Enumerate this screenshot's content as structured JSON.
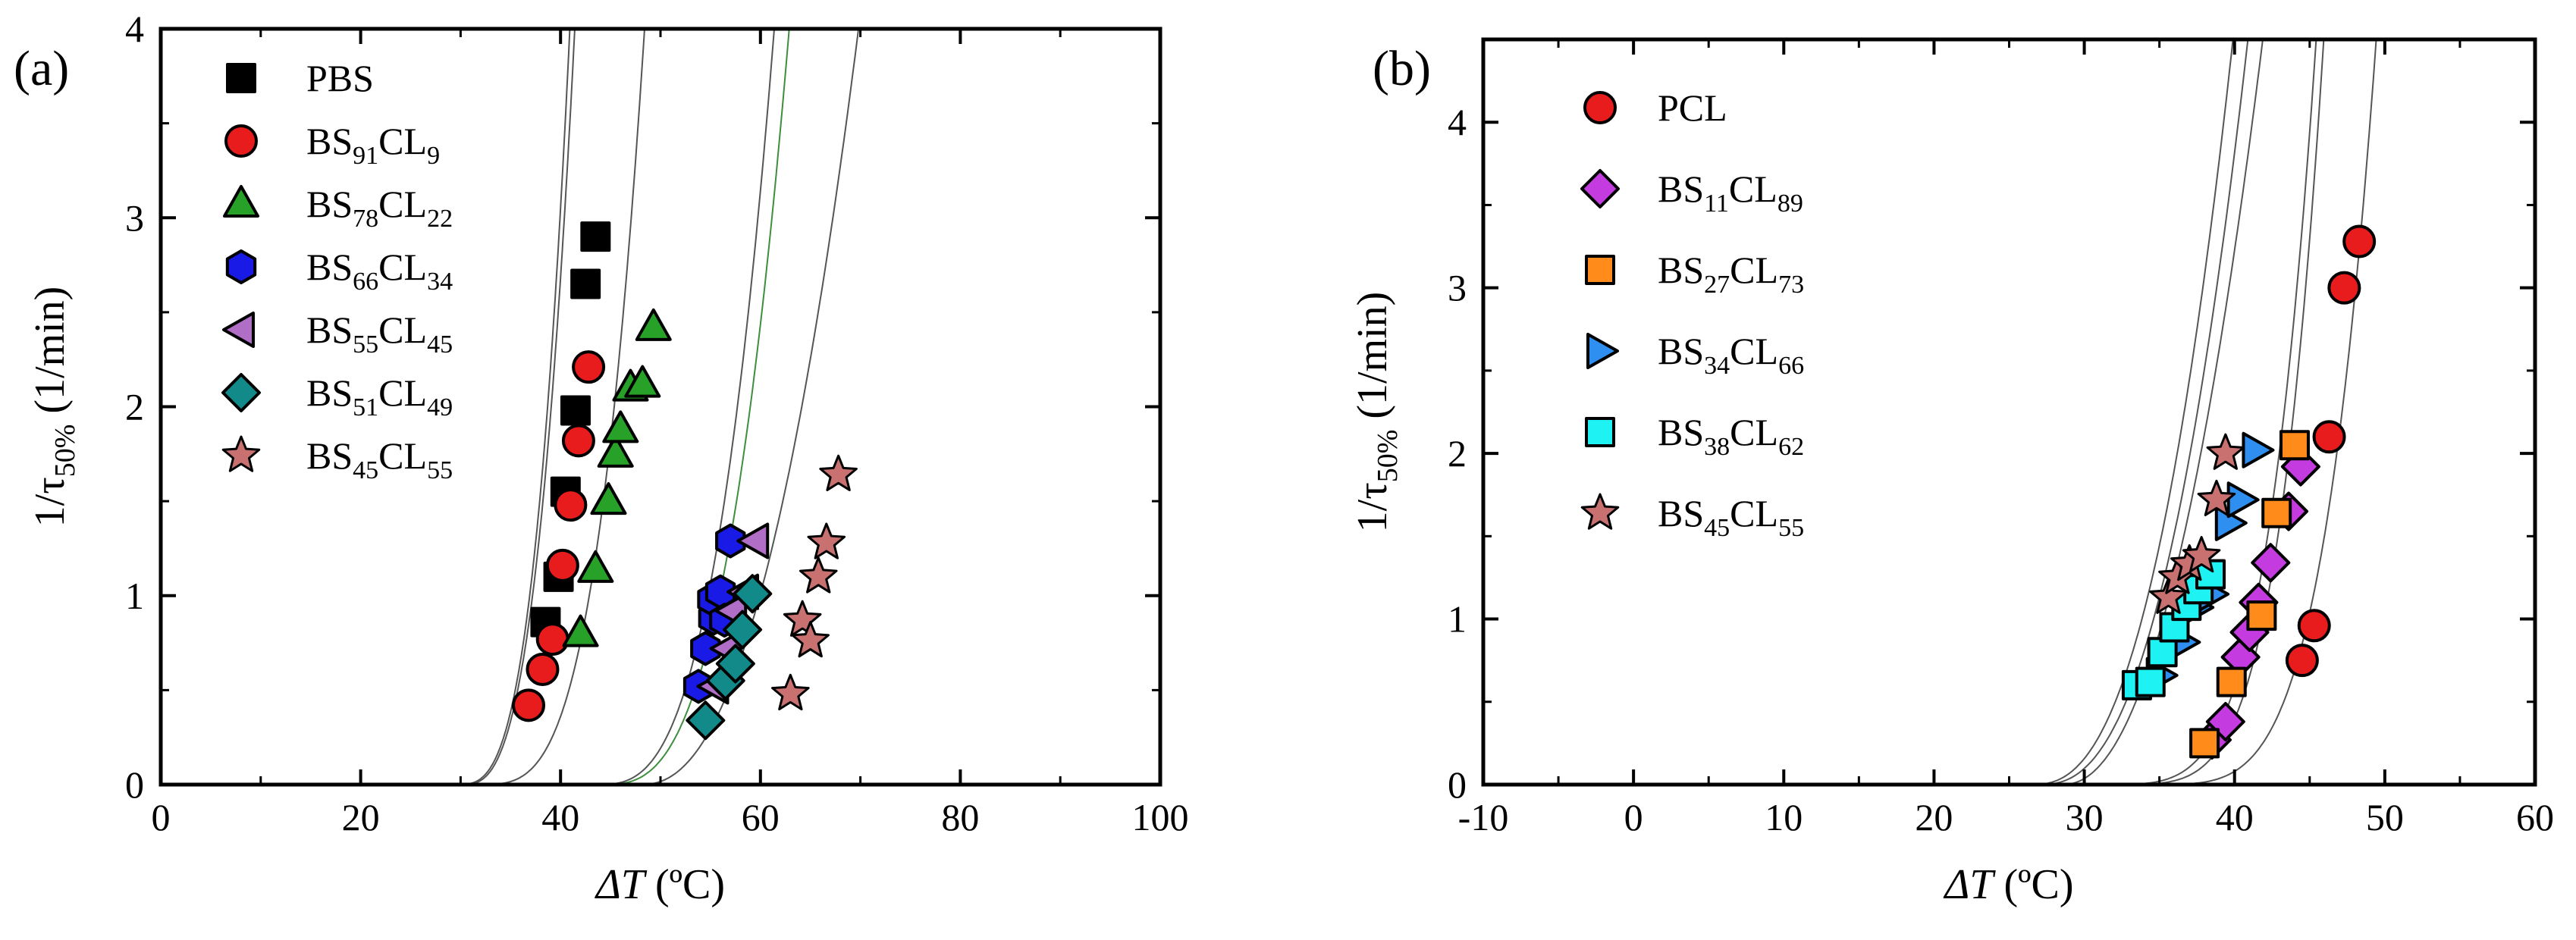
{
  "chart_data": [
    {
      "panel_label": "(a)",
      "type": "scatter",
      "title": "",
      "xlabel": {
        "main": "ΔT",
        "unit": " (ºC)"
      },
      "ylabel": {
        "main": "1/τ",
        "sub": "50%",
        "unit": " (1/min)"
      },
      "xlim": [
        0,
        100
      ],
      "ylim": [
        0,
        4
      ],
      "xticks": [
        0,
        20,
        40,
        60,
        80,
        100
      ],
      "yticks": [
        0,
        1,
        2,
        3,
        4
      ],
      "grid": false,
      "legend_position": "top-left",
      "series": [
        {
          "name": "PBS",
          "label_parts": [
            [
              "PBS",
              ""
            ]
          ],
          "marker": "square",
          "color": "#000000",
          "x": [
            38.5,
            39.8,
            40.5,
            41.5,
            42.5,
            43.5
          ],
          "y": [
            0.86,
            1.1,
            1.55,
            1.98,
            2.65,
            2.9
          ]
        },
        {
          "name": "BS91CL9",
          "label_parts": [
            [
              "BS",
              "91"
            ],
            [
              "CL",
              "9"
            ]
          ],
          "marker": "circle",
          "color": "#e81c1c",
          "x": [
            36.8,
            38.2,
            39.2,
            40.2,
            41.0,
            41.8,
            42.8
          ],
          "y": [
            0.42,
            0.61,
            0.77,
            1.16,
            1.48,
            1.82,
            2.21
          ]
        },
        {
          "name": "BS78CL22",
          "label_parts": [
            [
              "BS",
              "78"
            ],
            [
              "CL",
              "22"
            ]
          ],
          "marker": "triangle-up",
          "color": "#27a127",
          "x": [
            42.0,
            43.5,
            44.8,
            45.5,
            46.0,
            47.0,
            48.2,
            49.3
          ],
          "y": [
            0.8,
            1.14,
            1.5,
            1.75,
            1.88,
            2.1,
            2.12,
            2.42
          ]
        },
        {
          "name": "BS66CL34",
          "label_parts": [
            [
              "BS",
              "66"
            ],
            [
              "CL",
              "34"
            ]
          ],
          "marker": "hexagon",
          "color": "#1a1ae6",
          "x": [
            53.8,
            54.5,
            55.3,
            55.2,
            56.0,
            56.4,
            57.0
          ],
          "y": [
            0.52,
            0.72,
            0.88,
            0.98,
            1.02,
            0.87,
            1.29
          ]
        },
        {
          "name": "BS55CL45",
          "label_parts": [
            [
              "BS",
              "55"
            ],
            [
              "CL",
              "45"
            ]
          ],
          "marker": "triangle-left",
          "color": "#b06ec6",
          "x": [
            55.5,
            56.8,
            57.3,
            58.5,
            59.5
          ],
          "y": [
            0.52,
            0.72,
            0.92,
            1.02,
            1.29
          ]
        },
        {
          "name": "BS51CL49",
          "label_parts": [
            [
              "BS",
              "51"
            ],
            [
              "CL",
              "49"
            ]
          ],
          "marker": "diamond",
          "color": "#138a8a",
          "x": [
            54.5,
            56.5,
            57.5,
            58.2,
            59.2
          ],
          "y": [
            0.34,
            0.55,
            0.64,
            0.82,
            1.01
          ]
        },
        {
          "name": "BS45CL55",
          "label_parts": [
            [
              "BS",
              "45"
            ],
            [
              "CL",
              "55"
            ]
          ],
          "marker": "star",
          "color": "#c97070",
          "x": [
            63.0,
            64.2,
            65.0,
            65.8,
            66.6,
            67.8
          ],
          "y": [
            0.48,
            0.87,
            0.76,
            1.1,
            1.28,
            1.64
          ]
        }
      ],
      "fit_curves": [
        {
          "a": 29.5,
          "b": 41.0,
          "k": 3.2,
          "color": "#555555"
        },
        {
          "a": 30.0,
          "b": 41.5,
          "k": 3.0,
          "color": "#555555"
        },
        {
          "a": 31.5,
          "b": 48.5,
          "k": 3.5,
          "color": "#555555"
        },
        {
          "a": 43.5,
          "b": 61.5,
          "k": 3.0,
          "color": "#555555"
        },
        {
          "a": 44.0,
          "b": 63.0,
          "k": 3.0,
          "color": "#3e8e3e"
        },
        {
          "a": 48.0,
          "b": 70.0,
          "k": 2.3,
          "color": "#555555"
        }
      ]
    },
    {
      "panel_label": "(b)",
      "type": "scatter",
      "title": "",
      "xlabel": {
        "main": "ΔT",
        "unit": " (ºC)"
      },
      "ylabel": {
        "main": "1/τ",
        "sub": "50%",
        "unit": " (1/min)"
      },
      "xlim": [
        -10,
        60
      ],
      "ylim": [
        0,
        4.5
      ],
      "xticks": [
        -10,
        0,
        10,
        20,
        30,
        40,
        50,
        60
      ],
      "yticks": [
        0,
        1,
        2,
        3,
        4
      ],
      "grid": false,
      "legend_position": "top-left",
      "series": [
        {
          "name": "PCL",
          "label_parts": [
            [
              "PCL",
              ""
            ]
          ],
          "marker": "circle",
          "color": "#e81c1c",
          "x": [
            44.5,
            45.3,
            46.3,
            47.3,
            48.3
          ],
          "y": [
            0.75,
            0.96,
            2.1,
            3.0,
            3.28
          ]
        },
        {
          "name": "BS11CL89",
          "label_parts": [
            [
              "BS",
              "11"
            ],
            [
              "CL",
              "89"
            ]
          ],
          "marker": "diamond",
          "color": "#c43be0",
          "x": [
            38.5,
            39.4,
            40.4,
            41.0,
            41.6,
            42.4,
            43.6,
            44.4
          ],
          "y": [
            0.27,
            0.38,
            0.77,
            0.92,
            1.1,
            1.34,
            1.65,
            1.92
          ]
        },
        {
          "name": "BS27CL73",
          "label_parts": [
            [
              "BS",
              "27"
            ],
            [
              "CL",
              "73"
            ]
          ],
          "marker": "square",
          "color": "#ff8c1a",
          "x": [
            38.0,
            39.8,
            41.8,
            42.8,
            44.0
          ],
          "y": [
            0.25,
            0.62,
            1.02,
            1.64,
            2.05
          ]
        },
        {
          "name": "BS34CL66",
          "label_parts": [
            [
              "BS",
              "34"
            ],
            [
              "CL",
              "66"
            ]
          ],
          "marker": "triangle-right",
          "color": "#2f8ff0",
          "x": [
            35.0,
            36.5,
            37.4,
            38.4,
            39.6,
            40.4,
            41.4
          ],
          "y": [
            0.66,
            0.86,
            1.07,
            1.15,
            1.58,
            1.72,
            2.02
          ]
        },
        {
          "name": "BS38CL62",
          "label_parts": [
            [
              "BS",
              "38"
            ],
            [
              "CL",
              "62"
            ]
          ],
          "marker": "square",
          "color": "#1ef2f2",
          "x": [
            33.5,
            34.4,
            35.2,
            36.0,
            36.8,
            37.6,
            38.4
          ],
          "y": [
            0.6,
            0.62,
            0.8,
            0.95,
            1.08,
            1.18,
            1.27
          ]
        },
        {
          "name": "BS45CL55",
          "label_parts": [
            [
              "BS",
              "45"
            ],
            [
              "CL",
              "55"
            ]
          ],
          "marker": "star",
          "color": "#c97070",
          "x": [
            35.6,
            36.2,
            37.0,
            37.8,
            38.8,
            39.4
          ],
          "y": [
            1.13,
            1.25,
            1.33,
            1.38,
            1.72,
            2.0
          ]
        }
      ],
      "fit_curves": [
        {
          "a": 26.5,
          "b": 40.0,
          "k": 2.5,
          "color": "#555555"
        },
        {
          "a": 27.0,
          "b": 41.0,
          "k": 2.5,
          "color": "#555555"
        },
        {
          "a": 28.5,
          "b": 42.0,
          "k": 2.2,
          "color": "#555555"
        },
        {
          "a": 30.5,
          "b": 45.5,
          "k": 4.5,
          "color": "#555555"
        },
        {
          "a": 31.0,
          "b": 46.0,
          "k": 4.8,
          "color": "#555555"
        },
        {
          "a": 33.5,
          "b": 49.5,
          "k": 4.5,
          "color": "#555555"
        }
      ]
    }
  ]
}
